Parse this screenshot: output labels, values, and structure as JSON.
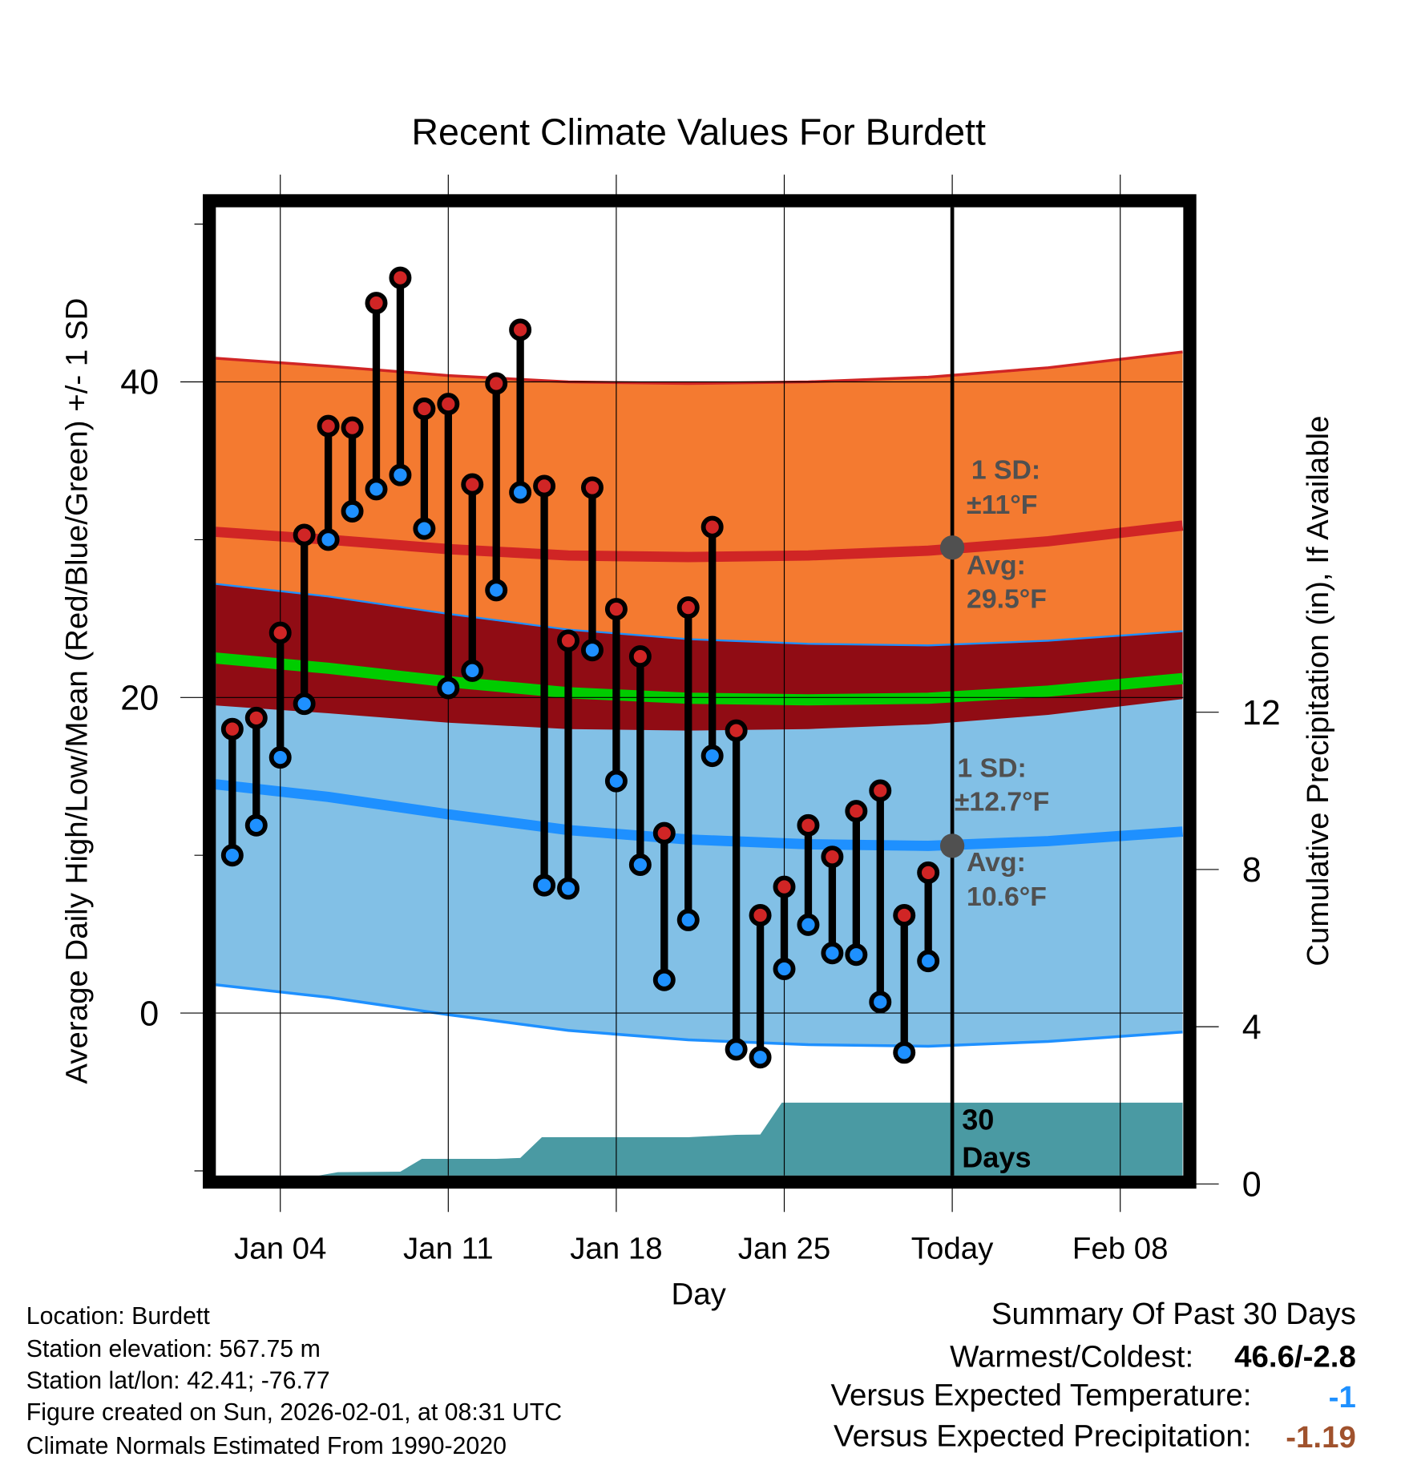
{
  "chart_data": {
    "type": "line",
    "title": "Recent Climate Values For Burdett",
    "xlabel": "Day",
    "ylabel": "Average Daily High/Low/Mean (Red/Blue/Green) +/- 1 SD",
    "ylabel_right": "Cumulative Precipitation (in), If Available",
    "xlim_day_index_from_jan01": [
      0.3,
      40.6
    ],
    "ylim": [
      -10.3,
      51.1
    ],
    "ylim_right": [
      0,
      24.8
    ],
    "x_ticks": [
      {
        "day": 3,
        "label": "Jan 04"
      },
      {
        "day": 10,
        "label": "Jan 11"
      },
      {
        "day": 17,
        "label": "Jan 18"
      },
      {
        "day": 24,
        "label": "Jan 25"
      },
      {
        "day": 31,
        "label": "Today"
      },
      {
        "day": 38,
        "label": "Feb 08"
      }
    ],
    "y_ticks": [
      0,
      20,
      40
    ],
    "y_ticks_right": [
      0,
      4,
      8,
      12
    ],
    "today_day": 31,
    "observations": {
      "days": [
        "Jan 02",
        "Jan 03",
        "Jan 04",
        "Jan 05",
        "Jan 06",
        "Jan 07",
        "Jan 08",
        "Jan 09",
        "Jan 10",
        "Jan 11",
        "Jan 12",
        "Jan 13",
        "Jan 14",
        "Jan 15",
        "Jan 16",
        "Jan 17",
        "Jan 18",
        "Jan 19",
        "Jan 20",
        "Jan 21",
        "Jan 22",
        "Jan 23",
        "Jan 24",
        "Jan 25",
        "Jan 26",
        "Jan 27",
        "Jan 28",
        "Jan 29",
        "Jan 30",
        "Jan 31"
      ],
      "high": [
        18.0,
        18.7,
        24.1,
        30.3,
        37.2,
        37.1,
        45.0,
        46.6,
        38.3,
        38.6,
        33.5,
        39.9,
        43.3,
        33.4,
        23.6,
        33.3,
        25.6,
        22.6,
        11.4,
        25.7,
        30.8,
        17.9,
        6.2,
        8.0,
        11.9,
        9.9,
        12.8,
        14.1,
        6.2,
        8.9
      ],
      "low": [
        10.0,
        11.9,
        16.2,
        19.6,
        30.0,
        31.8,
        33.2,
        34.1,
        30.7,
        20.6,
        21.7,
        26.8,
        33.0,
        8.1,
        7.9,
        23.0,
        14.7,
        9.4,
        2.1,
        5.9,
        16.3,
        -2.3,
        -2.8,
        2.8,
        5.6,
        3.8,
        3.7,
        0.7,
        -2.5,
        3.3
      ]
    },
    "normals": {
      "days": [
        0.3,
        5,
        10,
        15,
        20,
        25,
        30,
        35,
        40.6
      ],
      "high_mean": [
        30.5,
        30.0,
        29.4,
        29.0,
        28.9,
        29.0,
        29.3,
        29.9,
        30.9
      ],
      "low_mean": [
        14.5,
        13.7,
        12.6,
        11.6,
        11.0,
        10.7,
        10.6,
        10.9,
        11.5
      ],
      "high_sd": 11,
      "low_sd": 12.7
    },
    "precipitation": {
      "days": [
        0.3,
        4.6,
        5.4,
        8.0,
        8.9,
        12.0,
        13.0,
        13.9,
        20.0,
        22.0,
        23.0,
        23.9,
        40.6
      ],
      "cumulative_in": [
        0,
        0,
        0.3,
        0.31,
        0.64,
        0.64,
        0.66,
        1.19,
        1.19,
        1.25,
        1.26,
        2.07,
        2.07
      ]
    },
    "annotations": {
      "high_sd_label": [
        "1 SD:",
        "±11°F"
      ],
      "high_avg_label": [
        "Avg:",
        "29.5°F"
      ],
      "low_sd_label": [
        "1 SD:",
        "±12.7°F"
      ],
      "low_avg_label": [
        "Avg:",
        "10.6°F"
      ],
      "precip_label": [
        "30",
        "Days"
      ]
    }
  },
  "info": {
    "location": "Location: Burdett",
    "elevation": "Station elevation: 567.75 m",
    "latlon": "Station lat/lon: 42.41; -76.77",
    "created": "Figure created on Sun, 2026-02-01, at 08:31 UTC",
    "normals": "Climate Normals Estimated From 1990-2020"
  },
  "summary": {
    "title": "Summary Of Past 30 Days",
    "warm_cold_label": "Warmest/Coldest:",
    "warm_cold_value": "46.6/-2.8",
    "temp_label": "Versus Expected Temperature:",
    "temp_value": "-1",
    "precip_label": "Versus Expected Precipitation:",
    "precip_value": "-1.19"
  },
  "colors": {
    "high_band": "#F47A30",
    "overlap_band": "#900C14",
    "low_band": "#82C0E6",
    "high_line": "#D02525",
    "low_line": "#1E90FF",
    "mean_line": "#00CC00",
    "precip": "#4A9AA3",
    "temp_value": "#1E90FF",
    "precip_value": "#A0522D"
  }
}
